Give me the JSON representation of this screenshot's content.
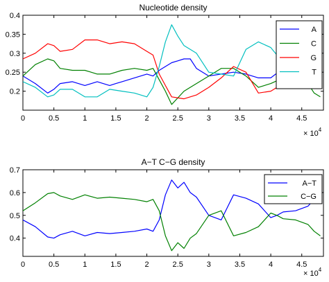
{
  "chart_data": [
    {
      "type": "line",
      "title": "Nucleotide density",
      "xlabel": "",
      "ylabel": "",
      "xlim": [
        0,
        48500
      ],
      "ylim": [
        0.15,
        0.4
      ],
      "x_exponent_label": "× 10",
      "x_exponent_power": "4",
      "xticks": [
        0,
        5000,
        10000,
        15000,
        20000,
        25000,
        30000,
        35000,
        40000,
        45000
      ],
      "xtick_labels": [
        "0",
        "0.5",
        "1",
        "1.5",
        "2",
        "2.5",
        "3",
        "3.5",
        "4",
        "4.5"
      ],
      "yticks": [
        0.2,
        0.25,
        0.3,
        0.35,
        0.4
      ],
      "ytick_labels": [
        "0.2",
        "0.25",
        "0.3",
        "0.35",
        "0.4"
      ],
      "legend_position": "top-right",
      "grid": false,
      "series": [
        {
          "name": "A",
          "color": "#0000ff",
          "x": [
            0,
            2000,
            4000,
            5000,
            6000,
            8000,
            10000,
            12000,
            14000,
            15000,
            16000,
            18000,
            20000,
            21000,
            22000,
            23000,
            24000,
            25000,
            26000,
            27000,
            28000,
            30000,
            32000,
            34000,
            36000,
            38000,
            40000,
            42000,
            44000,
            46000,
            47000
          ],
          "y": [
            0.24,
            0.22,
            0.195,
            0.205,
            0.22,
            0.225,
            0.215,
            0.225,
            0.215,
            0.22,
            0.225,
            0.235,
            0.245,
            0.24,
            0.255,
            0.265,
            0.275,
            0.28,
            0.285,
            0.285,
            0.26,
            0.24,
            0.245,
            0.25,
            0.245,
            0.235,
            0.235,
            0.26,
            0.28,
            0.3,
            0.31
          ]
        },
        {
          "name": "C",
          "color": "#008000",
          "x": [
            0,
            2000,
            4000,
            5000,
            6000,
            8000,
            10000,
            12000,
            14000,
            16000,
            18000,
            20000,
            21000,
            22000,
            23000,
            24000,
            26000,
            28000,
            30000,
            32000,
            34000,
            36000,
            38000,
            40000,
            42000,
            44000,
            46000,
            47000,
            48000
          ],
          "y": [
            0.24,
            0.27,
            0.285,
            0.28,
            0.26,
            0.255,
            0.255,
            0.245,
            0.245,
            0.255,
            0.26,
            0.255,
            0.26,
            0.23,
            0.2,
            0.165,
            0.2,
            0.22,
            0.24,
            0.26,
            0.26,
            0.24,
            0.21,
            0.22,
            0.235,
            0.23,
            0.22,
            0.195,
            0.185
          ]
        },
        {
          "name": "G",
          "color": "#ff0000",
          "x": [
            0,
            2000,
            4000,
            5000,
            6000,
            8000,
            10000,
            12000,
            14000,
            16000,
            18000,
            20000,
            21000,
            22000,
            23000,
            24000,
            26000,
            28000,
            30000,
            32000,
            34000,
            36000,
            38000,
            40000,
            42000,
            44000,
            46000,
            47000,
            48000
          ],
          "y": [
            0.285,
            0.3,
            0.325,
            0.32,
            0.305,
            0.31,
            0.335,
            0.335,
            0.325,
            0.33,
            0.325,
            0.305,
            0.295,
            0.245,
            0.215,
            0.185,
            0.18,
            0.19,
            0.21,
            0.235,
            0.265,
            0.25,
            0.195,
            0.2,
            0.22,
            0.255,
            0.245,
            0.215,
            0.23
          ]
        },
        {
          "name": "T",
          "color": "#00bfbf",
          "x": [
            0,
            2000,
            4000,
            5000,
            6000,
            8000,
            10000,
            12000,
            14000,
            16000,
            18000,
            20000,
            21000,
            22000,
            23000,
            24000,
            25000,
            26000,
            28000,
            30000,
            32000,
            34000,
            36000,
            38000,
            40000,
            42000,
            44000,
            46000,
            47000,
            48000
          ],
          "y": [
            0.225,
            0.21,
            0.185,
            0.19,
            0.205,
            0.205,
            0.185,
            0.185,
            0.205,
            0.2,
            0.195,
            0.185,
            0.21,
            0.265,
            0.33,
            0.375,
            0.345,
            0.32,
            0.3,
            0.25,
            0.245,
            0.24,
            0.31,
            0.33,
            0.315,
            0.275,
            0.24,
            0.22,
            0.25,
            0.27
          ]
        }
      ]
    },
    {
      "type": "line",
      "title": "A−T C−G density",
      "xlabel": "",
      "ylabel": "",
      "xlim": [
        0,
        48500
      ],
      "ylim": [
        0.32,
        0.7
      ],
      "x_exponent_label": "× 10",
      "x_exponent_power": "4",
      "xticks": [
        0,
        5000,
        10000,
        15000,
        20000,
        25000,
        30000,
        35000,
        40000,
        45000
      ],
      "xtick_labels": [
        "0",
        "0.5",
        "1",
        "1.5",
        "2",
        "2.5",
        "3",
        "3.5",
        "4",
        "4.5"
      ],
      "yticks": [
        0.4,
        0.5,
        0.6,
        0.7
      ],
      "ytick_labels": [
        "0.4",
        "0.5",
        "0.6",
        "0.7"
      ],
      "legend_position": "top-right",
      "grid": false,
      "series": [
        {
          "name": "A−T",
          "color": "#0000ff",
          "x": [
            0,
            2000,
            4000,
            5000,
            6000,
            8000,
            10000,
            12000,
            14000,
            16000,
            18000,
            20000,
            21000,
            22000,
            23000,
            24000,
            25000,
            26000,
            27000,
            28000,
            30000,
            32000,
            34000,
            36000,
            38000,
            40000,
            41000,
            42000,
            44000,
            46000,
            47000
          ],
          "y": [
            0.48,
            0.45,
            0.405,
            0.4,
            0.415,
            0.43,
            0.41,
            0.425,
            0.42,
            0.425,
            0.43,
            0.44,
            0.43,
            0.48,
            0.59,
            0.655,
            0.62,
            0.645,
            0.6,
            0.58,
            0.5,
            0.48,
            0.59,
            0.575,
            0.55,
            0.49,
            0.5,
            0.515,
            0.52,
            0.54,
            0.57
          ]
        },
        {
          "name": "C−G",
          "color": "#008000",
          "x": [
            0,
            2000,
            4000,
            5000,
            6000,
            8000,
            10000,
            12000,
            14000,
            16000,
            18000,
            20000,
            21000,
            22000,
            23000,
            24000,
            25000,
            26000,
            27000,
            28000,
            30000,
            32000,
            34000,
            36000,
            38000,
            40000,
            41000,
            42000,
            44000,
            46000,
            47000,
            48000
          ],
          "y": [
            0.52,
            0.555,
            0.595,
            0.6,
            0.585,
            0.57,
            0.59,
            0.575,
            0.58,
            0.575,
            0.57,
            0.56,
            0.57,
            0.52,
            0.41,
            0.345,
            0.38,
            0.355,
            0.4,
            0.42,
            0.5,
            0.52,
            0.41,
            0.425,
            0.45,
            0.51,
            0.5,
            0.485,
            0.48,
            0.46,
            0.43,
            0.41
          ]
        }
      ]
    }
  ]
}
